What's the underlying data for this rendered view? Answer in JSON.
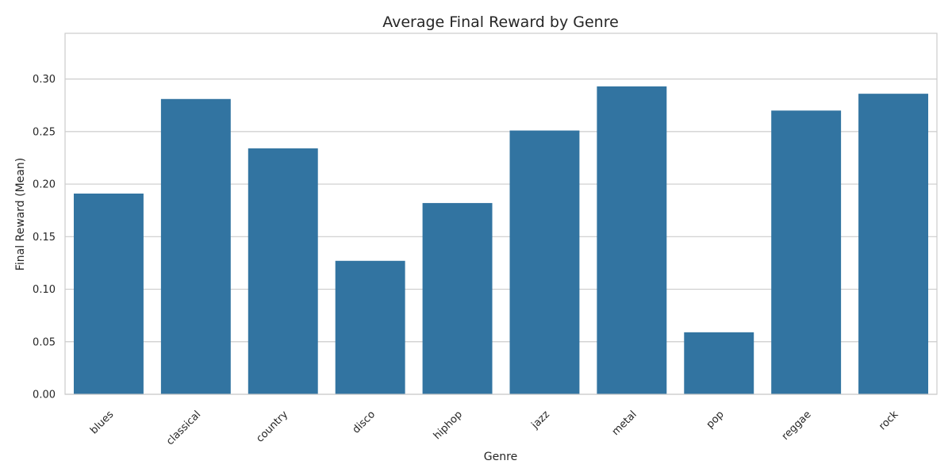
{
  "chart_data": {
    "type": "bar",
    "title": "Average Final Reward by Genre",
    "xlabel": "Genre",
    "ylabel": "Final Reward (Mean)",
    "categories": [
      "blues",
      "classical",
      "country",
      "disco",
      "hiphop",
      "jazz",
      "metal",
      "pop",
      "reggae",
      "rock"
    ],
    "values": [
      0.191,
      0.281,
      0.234,
      0.127,
      0.182,
      0.251,
      0.293,
      0.059,
      0.27,
      0.286
    ],
    "yticks": [
      "0.00",
      "0.05",
      "0.10",
      "0.15",
      "0.20",
      "0.25",
      "0.30"
    ],
    "ylim": [
      0,
      0.3435
    ],
    "grid": "horizontal",
    "legend": "none",
    "colors": {
      "bar": "#3274a1",
      "grid": "#cccccc",
      "spine": "#cccccc",
      "text": "#262626"
    }
  }
}
